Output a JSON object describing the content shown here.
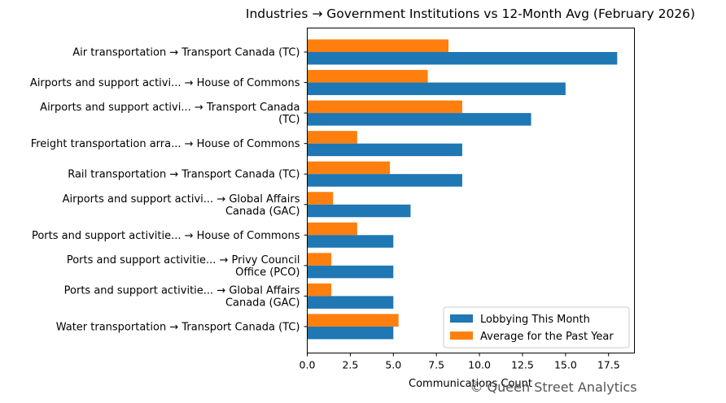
{
  "chart_data": {
    "type": "bar",
    "orientation": "horizontal",
    "title": "Industries → Government Institutions vs 12-Month Avg (February 2026)",
    "xlabel": "Communications Count",
    "ylabel": "",
    "xlim": [
      0,
      19
    ],
    "xticks": [
      "0.0",
      "2.5",
      "5.0",
      "7.5",
      "10.0",
      "12.5",
      "15.0",
      "17.5"
    ],
    "xtick_values": [
      0,
      2.5,
      5,
      7.5,
      10,
      12.5,
      15,
      17.5
    ],
    "grid": false,
    "legend_position": "bottom-right",
    "categories": [
      [
        "Air transportation → Transport Canada (TC)"
      ],
      [
        "Airports and support activi... → House of Commons"
      ],
      [
        "Airports and support activi... → Transport Canada",
        "(TC)"
      ],
      [
        "Freight transportation arra... → House of Commons"
      ],
      [
        "Rail transportation → Transport Canada (TC)"
      ],
      [
        "Airports and support activi... → Global Affairs",
        "Canada (GAC)"
      ],
      [
        "Ports and support activitie... → House of Commons"
      ],
      [
        "Ports and support activitie... → Privy Council",
        "Office (PCO)"
      ],
      [
        "Ports and support activitie... → Global Affairs",
        "Canada (GAC)"
      ],
      [
        "Water transportation → Transport Canada (TC)"
      ]
    ],
    "series": [
      {
        "name": "Lobbying This Month",
        "color": "#1f77b4",
        "values": [
          18,
          15,
          13,
          9,
          9,
          6,
          5,
          5,
          5,
          5
        ]
      },
      {
        "name": "Average for the Past Year",
        "color": "#ff7f0e",
        "values": [
          8.2,
          7.0,
          9.0,
          2.9,
          4.8,
          1.5,
          2.9,
          1.4,
          1.4,
          5.3
        ]
      }
    ]
  },
  "watermark": "© Queen Street Analytics"
}
